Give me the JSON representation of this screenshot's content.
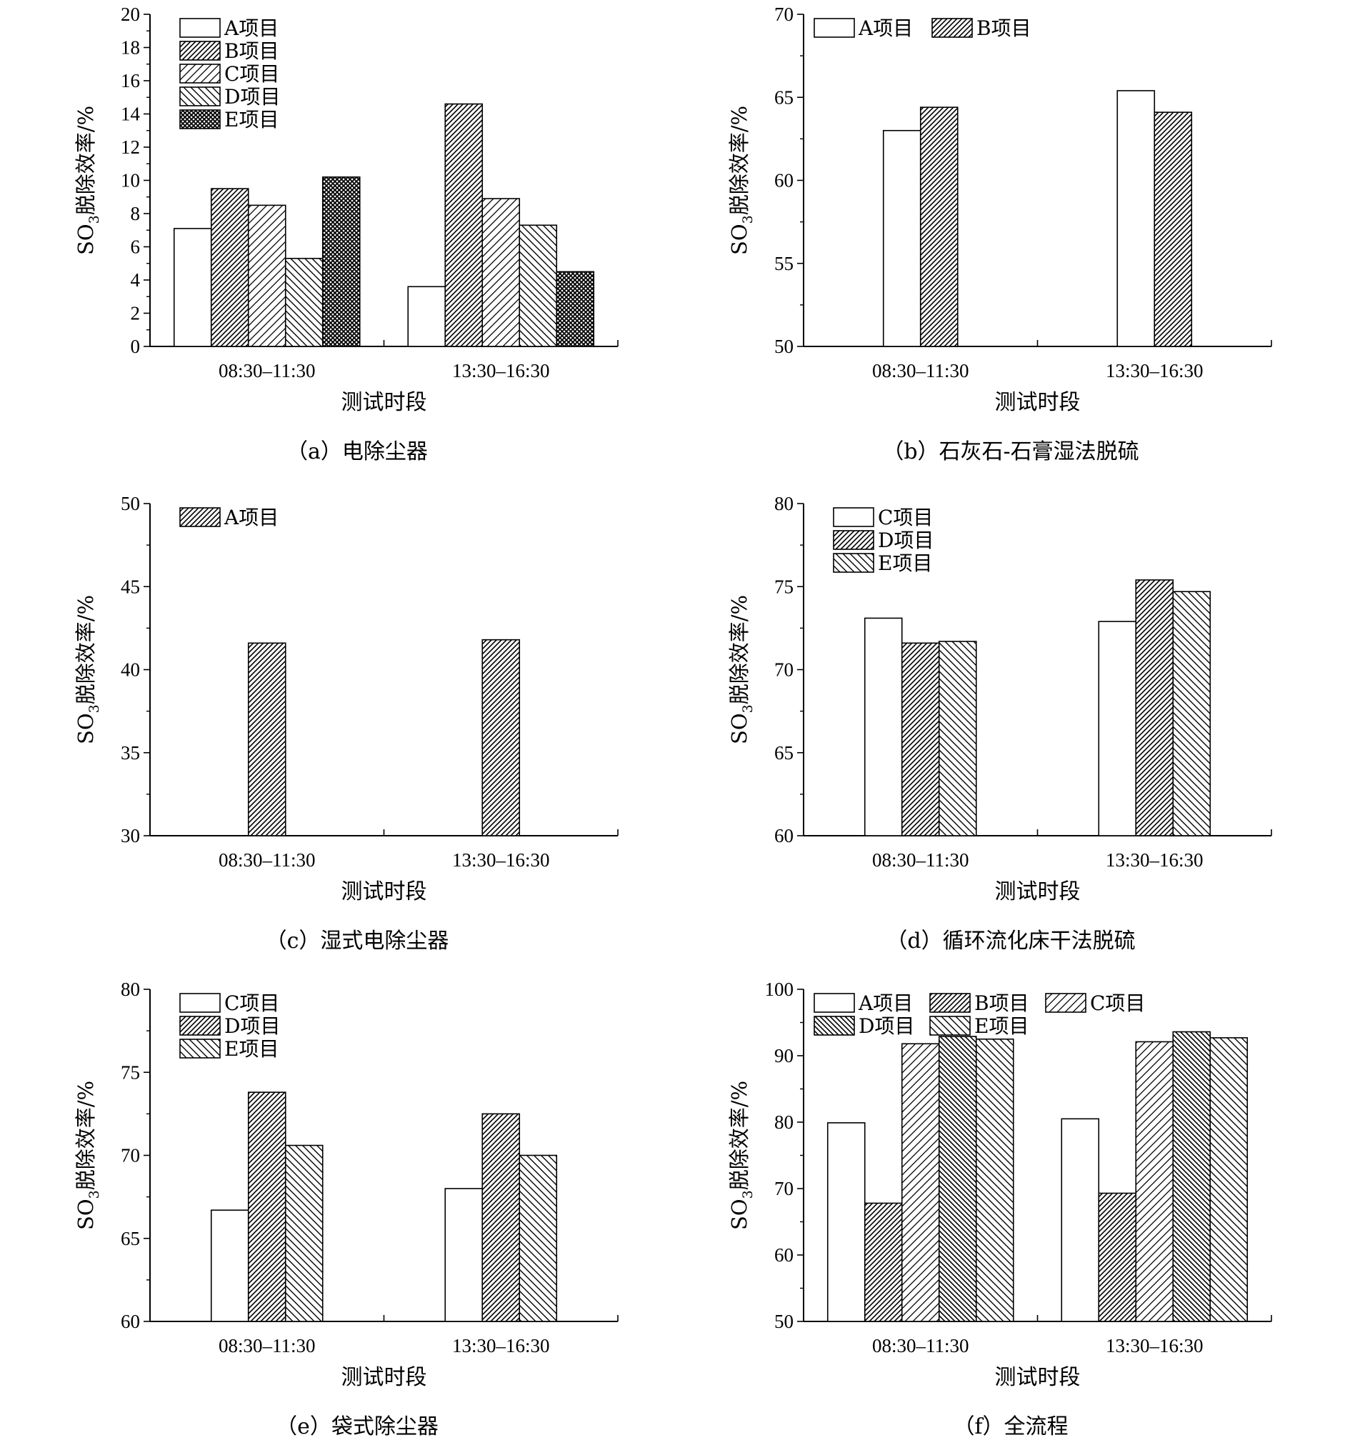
{
  "chart_data": [
    {
      "id": "a",
      "type": "bar",
      "caption": "（a）电除尘器",
      "xlabel": "测试时段",
      "ylabel_main": "SO",
      "ylabel_sub": "3",
      "ylabel_rest": "脱除效率/%",
      "categories": [
        "08:30–11:30",
        "13:30–16:30"
      ],
      "ylim": [
        0,
        20
      ],
      "yticks": [
        0,
        2,
        4,
        6,
        8,
        10,
        12,
        14,
        16,
        18,
        20
      ],
      "legend_position": "top-left",
      "legend_columns": 1,
      "series": [
        {
          "name": "A项目",
          "pattern": "white",
          "values": [
            7.1,
            3.6
          ]
        },
        {
          "name": "B项目",
          "pattern": "dense-diag",
          "values": [
            9.5,
            14.6
          ]
        },
        {
          "name": "C项目",
          "pattern": "sparse-diag",
          "values": [
            8.5,
            8.9
          ]
        },
        {
          "name": "D项目",
          "pattern": "back-diag",
          "values": [
            5.3,
            7.3
          ]
        },
        {
          "name": "E项目",
          "pattern": "crosshatch",
          "values": [
            10.2,
            4.5
          ]
        }
      ]
    },
    {
      "id": "b",
      "type": "bar",
      "caption": "（b）石灰石-石膏湿法脱硫",
      "xlabel": "测试时段",
      "ylabel_main": "SO",
      "ylabel_sub": "3",
      "ylabel_rest": "脱除效率/%",
      "categories": [
        "08:30–11:30",
        "13:30–16:30"
      ],
      "ylim": [
        50,
        70
      ],
      "yticks": [
        50,
        55,
        60,
        65,
        70
      ],
      "legend_position": "top-left",
      "legend_columns": 2,
      "series": [
        {
          "name": "A项目",
          "pattern": "white",
          "values": [
            63.0,
            65.4
          ]
        },
        {
          "name": "B项目",
          "pattern": "dense-diag",
          "values": [
            64.4,
            64.1
          ]
        }
      ]
    },
    {
      "id": "c",
      "type": "bar",
      "caption": "（c）湿式电除尘器",
      "xlabel": "测试时段",
      "ylabel_main": "SO",
      "ylabel_sub": "3",
      "ylabel_rest": "脱除效率/%",
      "categories": [
        "08:30–11:30",
        "13:30–16:30"
      ],
      "ylim": [
        30,
        50
      ],
      "yticks": [
        30,
        35,
        40,
        45,
        50
      ],
      "legend_position": "top-left",
      "legend_columns": 1,
      "series": [
        {
          "name": "A项目",
          "pattern": "dense-diag",
          "values": [
            41.6,
            41.8
          ]
        }
      ]
    },
    {
      "id": "d",
      "type": "bar",
      "caption": "（d）循环流化床干法脱硫",
      "xlabel": "测试时段",
      "ylabel_main": "SO",
      "ylabel_sub": "3",
      "ylabel_rest": "脱除效率/%",
      "categories": [
        "08:30–11:30",
        "13:30–16:30"
      ],
      "ylim": [
        60,
        80
      ],
      "yticks": [
        60,
        65,
        70,
        75,
        80
      ],
      "legend_position": "top-left",
      "legend_columns": 1,
      "series": [
        {
          "name": "C项目",
          "pattern": "white",
          "values": [
            73.1,
            72.9
          ]
        },
        {
          "name": "D项目",
          "pattern": "dense-diag",
          "values": [
            71.6,
            75.4
          ]
        },
        {
          "name": "E项目",
          "pattern": "back-diag",
          "values": [
            71.7,
            74.7
          ]
        }
      ]
    },
    {
      "id": "e",
      "type": "bar",
      "caption": "（e）袋式除尘器",
      "xlabel": "测试时段",
      "ylabel_main": "SO",
      "ylabel_sub": "3",
      "ylabel_rest": "脱除效率/%",
      "categories": [
        "08:30–11:30",
        "13:30–16:30"
      ],
      "ylim": [
        60,
        80
      ],
      "yticks": [
        60,
        65,
        70,
        75,
        80
      ],
      "legend_position": "top-left",
      "legend_columns": 1,
      "series": [
        {
          "name": "C项目",
          "pattern": "white",
          "values": [
            66.7,
            68.0
          ]
        },
        {
          "name": "D项目",
          "pattern": "dense-diag",
          "values": [
            73.8,
            72.5
          ]
        },
        {
          "name": "E项目",
          "pattern": "back-diag",
          "values": [
            70.6,
            70.0
          ]
        }
      ]
    },
    {
      "id": "f",
      "type": "bar",
      "caption": "（f）全流程",
      "xlabel": "测试时段",
      "ylabel_main": "SO",
      "ylabel_sub": "3",
      "ylabel_rest": "脱除效率/%",
      "categories": [
        "08:30–11:30",
        "13:30–16:30"
      ],
      "ylim": [
        50,
        100
      ],
      "yticks": [
        50,
        60,
        70,
        80,
        90,
        100
      ],
      "legend_position": "top-left",
      "legend_columns": 3,
      "series": [
        {
          "name": "A项目",
          "pattern": "white",
          "values": [
            79.9,
            80.5
          ]
        },
        {
          "name": "B项目",
          "pattern": "dense-diag",
          "values": [
            67.8,
            69.3
          ]
        },
        {
          "name": "C项目",
          "pattern": "sparse-diag",
          "values": [
            91.8,
            92.1
          ]
        },
        {
          "name": "D项目",
          "pattern": "back-diag-dense",
          "values": [
            92.9,
            93.6
          ]
        },
        {
          "name": "E项目",
          "pattern": "back-diag",
          "values": [
            92.5,
            92.7
          ]
        }
      ]
    }
  ]
}
